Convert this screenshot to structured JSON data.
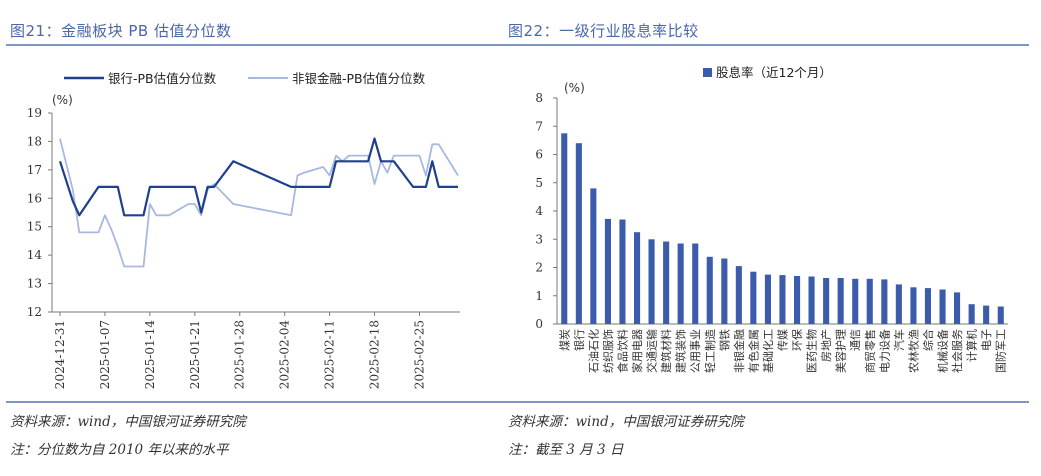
{
  "left": {
    "title": "图21：金融板块 PB 估值分位数",
    "source": "资料来源：wind，中国银河证券研究院",
    "note": "注：分位数为自 2010 年以来的水平",
    "chart_data": {
      "type": "line",
      "unit_label": "(%)",
      "ylim": [
        12,
        19
      ],
      "yticks": [
        12,
        13,
        14,
        15,
        16,
        17,
        18,
        19
      ],
      "x_tick_labels": [
        "2024-12-31",
        "2025-01-07",
        "2025-01-14",
        "2025-01-21",
        "2025-01-28",
        "2025-02-04",
        "2025-02-11",
        "2025-02-18",
        "2025-02-25"
      ],
      "legend": "top",
      "series": [
        {
          "name": "银行-PB估值分位数",
          "color": "#1f3f8f",
          "points": [
            [
              "2024-12-31",
              17.3
            ],
            [
              "2025-01-02",
              15.9
            ],
            [
              "2025-01-03",
              15.4
            ],
            [
              "2025-01-06",
              16.4
            ],
            [
              "2025-01-07",
              16.4
            ],
            [
              "2025-01-08",
              16.4
            ],
            [
              "2025-01-09",
              16.4
            ],
            [
              "2025-01-10",
              15.4
            ],
            [
              "2025-01-13",
              15.4
            ],
            [
              "2025-01-14",
              16.4
            ],
            [
              "2025-01-15",
              16.4
            ],
            [
              "2025-01-16",
              16.4
            ],
            [
              "2025-01-17",
              16.4
            ],
            [
              "2025-01-20",
              16.4
            ],
            [
              "2025-01-21",
              16.4
            ],
            [
              "2025-01-22",
              15.5
            ],
            [
              "2025-01-23",
              16.4
            ],
            [
              "2025-01-24",
              16.4
            ],
            [
              "2025-01-27",
              17.3
            ],
            [
              "2025-02-05",
              16.4
            ],
            [
              "2025-02-06",
              16.4
            ],
            [
              "2025-02-07",
              16.4
            ],
            [
              "2025-02-10",
              16.4
            ],
            [
              "2025-02-11",
              16.4
            ],
            [
              "2025-02-12",
              17.3
            ],
            [
              "2025-02-13",
              17.3
            ],
            [
              "2025-02-14",
              17.3
            ],
            [
              "2025-02-17",
              17.3
            ],
            [
              "2025-02-18",
              18.1
            ],
            [
              "2025-02-19",
              17.3
            ],
            [
              "2025-02-20",
              17.3
            ],
            [
              "2025-02-21",
              17.3
            ],
            [
              "2025-02-24",
              16.4
            ],
            [
              "2025-02-25",
              16.4
            ],
            [
              "2025-02-26",
              16.4
            ],
            [
              "2025-02-27",
              17.3
            ],
            [
              "2025-02-28",
              16.4
            ],
            [
              "2025-03-03",
              16.4
            ]
          ]
        },
        {
          "name": "非银金融-PB估值分位数",
          "color": "#a7b9e0",
          "points": [
            [
              "2024-12-31",
              18.1
            ],
            [
              "2025-01-02",
              16.3
            ],
            [
              "2025-01-03",
              14.8
            ],
            [
              "2025-01-06",
              14.8
            ],
            [
              "2025-01-07",
              15.4
            ],
            [
              "2025-01-08",
              14.9
            ],
            [
              "2025-01-09",
              14.3
            ],
            [
              "2025-01-10",
              13.6
            ],
            [
              "2025-01-13",
              13.6
            ],
            [
              "2025-01-14",
              15.8
            ],
            [
              "2025-01-15",
              15.4
            ],
            [
              "2025-01-16",
              15.4
            ],
            [
              "2025-01-17",
              15.4
            ],
            [
              "2025-01-20",
              15.8
            ],
            [
              "2025-01-21",
              15.8
            ],
            [
              "2025-01-22",
              15.4
            ],
            [
              "2025-01-23",
              16.3
            ],
            [
              "2025-01-24",
              16.5
            ],
            [
              "2025-01-27",
              15.8
            ],
            [
              "2025-02-05",
              15.4
            ],
            [
              "2025-02-06",
              16.8
            ],
            [
              "2025-02-07",
              16.9
            ],
            [
              "2025-02-10",
              17.1
            ],
            [
              "2025-02-11",
              16.8
            ],
            [
              "2025-02-12",
              17.5
            ],
            [
              "2025-02-13",
              17.3
            ],
            [
              "2025-02-14",
              17.5
            ],
            [
              "2025-02-17",
              17.5
            ],
            [
              "2025-02-18",
              16.5
            ],
            [
              "2025-02-19",
              17.3
            ],
            [
              "2025-02-20",
              16.9
            ],
            [
              "2025-02-21",
              17.5
            ],
            [
              "2025-02-24",
              17.5
            ],
            [
              "2025-02-25",
              17.5
            ],
            [
              "2025-02-26",
              16.8
            ],
            [
              "2025-02-27",
              17.9
            ],
            [
              "2025-02-28",
              17.9
            ],
            [
              "2025-03-03",
              16.8
            ]
          ]
        }
      ]
    }
  },
  "right": {
    "title": "图22：一级行业股息率比较",
    "source": "资料来源：wind，中国银河证券研究院",
    "note": "注：截至 3 月 3 日",
    "chart_data": {
      "type": "bar",
      "unit_label": "(%)",
      "ylim": [
        0,
        8
      ],
      "yticks": [
        0,
        1,
        2,
        3,
        4,
        5,
        6,
        7,
        8
      ],
      "legend": "top",
      "series_name": "股息率（近12个月）",
      "color": "#3b5bab",
      "categories": [
        "煤炭",
        "银行",
        "石油石化",
        "纺织服饰",
        "食品饮料",
        "家用电器",
        "交通运输",
        "建筑材料",
        "建筑装饰",
        "公用事业",
        "轻工制造",
        "钢铁",
        "非银金融",
        "有色金属",
        "基础化工",
        "传媒",
        "环保",
        "医药生物",
        "房地产",
        "美容护理",
        "通信",
        "商贸零售",
        "电力设备",
        "汽车",
        "农林牧渔",
        "综合",
        "机械设备",
        "社会服务",
        "计算机",
        "电子",
        "国防军工"
      ],
      "values": [
        6.75,
        6.4,
        4.8,
        3.72,
        3.7,
        3.25,
        3.0,
        2.92,
        2.85,
        2.85,
        2.38,
        2.32,
        2.05,
        1.85,
        1.75,
        1.73,
        1.7,
        1.68,
        1.63,
        1.63,
        1.6,
        1.6,
        1.58,
        1.4,
        1.3,
        1.27,
        1.22,
        1.12,
        0.7,
        0.65,
        0.62
      ]
    }
  }
}
